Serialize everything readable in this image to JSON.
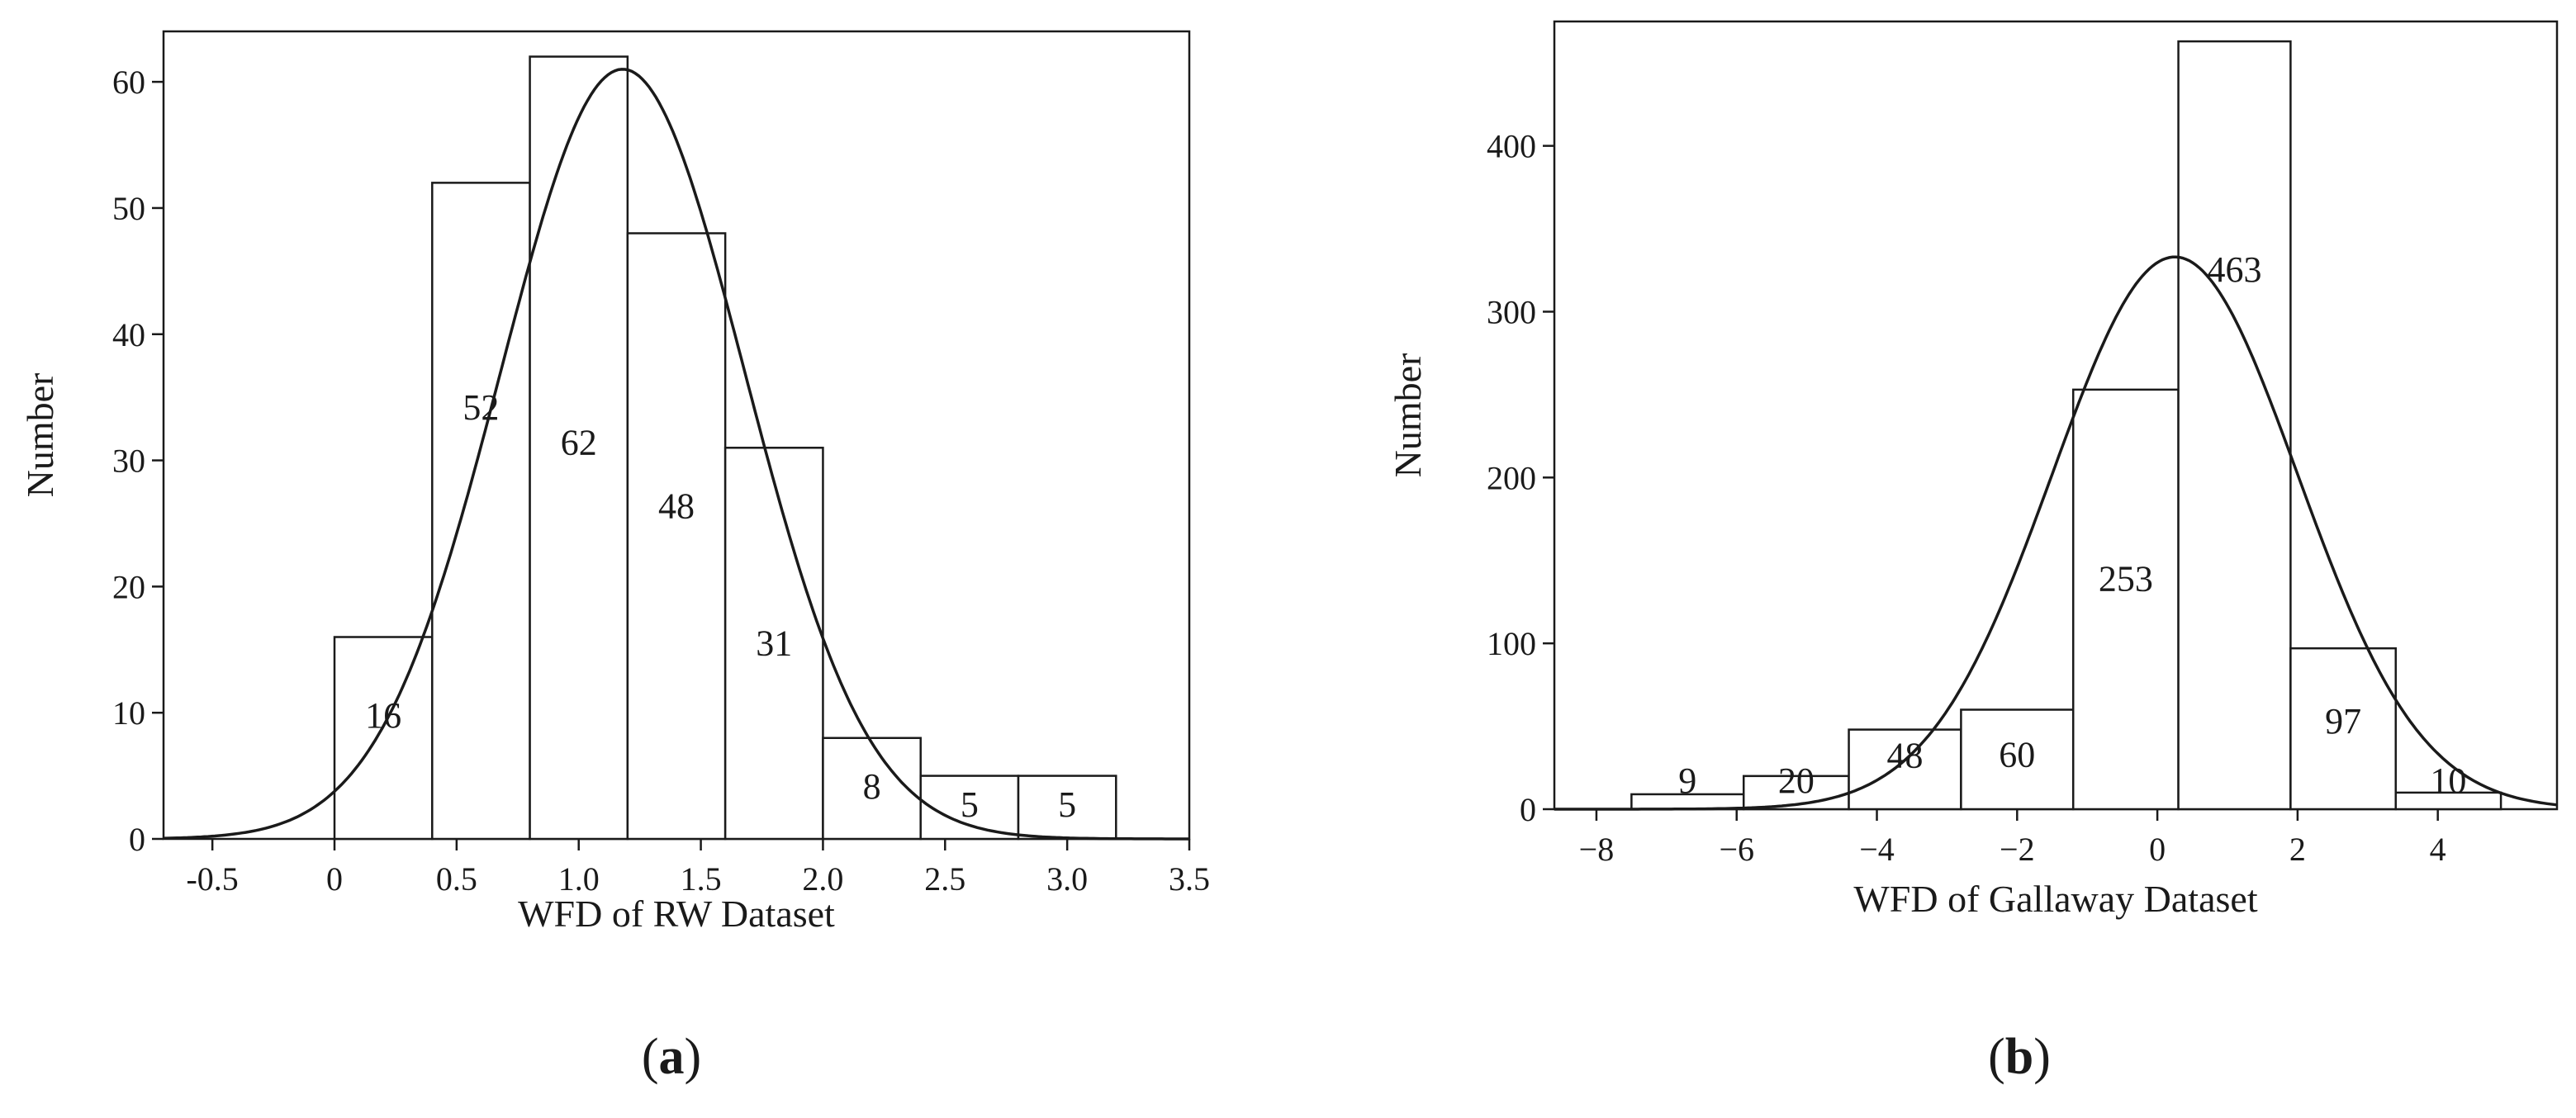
{
  "colors": {
    "background": "#ffffff",
    "line": "#1a1a1a",
    "bar_fill": "#ffffff"
  },
  "chart_data": [
    {
      "type": "bar",
      "title": "",
      "panel_label": [
        "(",
        "a",
        ")"
      ],
      "xlabel": "WFD of RW Dataset",
      "ylabel": "Number",
      "xlim": [
        -0.7,
        3.5
      ],
      "ylim": [
        0,
        64
      ],
      "xticks": [
        -0.5,
        0,
        0.5,
        1.0,
        1.5,
        2.0,
        2.5,
        3.0,
        3.5
      ],
      "xtick_labels": [
        "-0.5",
        "0",
        "0.5",
        "1.0",
        "1.5",
        "2.0",
        "2.5",
        "3.0",
        "3.5"
      ],
      "yticks": [
        0,
        10,
        20,
        30,
        40,
        50,
        60
      ],
      "ytick_labels": [
        "0",
        "10",
        "20",
        "30",
        "40",
        "50",
        "60"
      ],
      "bins": [
        {
          "x0": 0.0,
          "x1": 0.4,
          "count": 16,
          "label": "16"
        },
        {
          "x0": 0.4,
          "x1": 0.8,
          "count": 52,
          "label": "52"
        },
        {
          "x0": 0.8,
          "x1": 1.2,
          "count": 62,
          "label": "62"
        },
        {
          "x0": 1.2,
          "x1": 1.6,
          "count": 48,
          "label": "48"
        },
        {
          "x0": 1.6,
          "x1": 2.0,
          "count": 31,
          "label": "31"
        },
        {
          "x0": 2.0,
          "x1": 2.4,
          "count": 8,
          "label": "8"
        },
        {
          "x0": 2.4,
          "x1": 2.8,
          "count": 5,
          "label": "5"
        },
        {
          "x0": 2.8,
          "x1": 3.2,
          "count": 5,
          "label": "5"
        }
      ],
      "normal_curve": {
        "mean": 1.18,
        "sd": 0.5,
        "peak": 61
      },
      "grid": false,
      "legend": "none"
    },
    {
      "type": "bar",
      "title": "",
      "panel_label": [
        "(",
        "b",
        ")"
      ],
      "xlabel": "WFD of Gallaway Dataset",
      "ylabel": "Number",
      "xlim": [
        -8.6,
        5.7
      ],
      "ylim": [
        0,
        475
      ],
      "xticks": [
        -8,
        -6,
        -4,
        -2,
        0,
        2,
        4
      ],
      "xtick_labels": [
        "−8",
        "−6",
        "−4",
        "−2",
        "0",
        "2",
        "4"
      ],
      "yticks": [
        0,
        100,
        200,
        300,
        400
      ],
      "ytick_labels": [
        "0",
        "100",
        "200",
        "300",
        "400"
      ],
      "bins": [
        {
          "x0": -7.5,
          "x1": -5.9,
          "count": 9,
          "label": "9"
        },
        {
          "x0": -5.9,
          "x1": -4.4,
          "count": 20,
          "label": "20"
        },
        {
          "x0": -4.4,
          "x1": -2.8,
          "count": 48,
          "label": "48"
        },
        {
          "x0": -2.8,
          "x1": -1.2,
          "count": 60,
          "label": "60"
        },
        {
          "x0": -1.2,
          "x1": 0.3,
          "count": 253,
          "label": "253"
        },
        {
          "x0": 0.3,
          "x1": 1.9,
          "count": 463,
          "label": "463"
        },
        {
          "x0": 1.9,
          "x1": 3.4,
          "count": 97,
          "label": "97"
        },
        {
          "x0": 3.4,
          "x1": 4.9,
          "count": 10,
          "label": "10"
        }
      ],
      "normal_curve": {
        "mean": 0.25,
        "sd": 1.75,
        "peak": 333
      },
      "grid": false,
      "legend": "none"
    }
  ]
}
